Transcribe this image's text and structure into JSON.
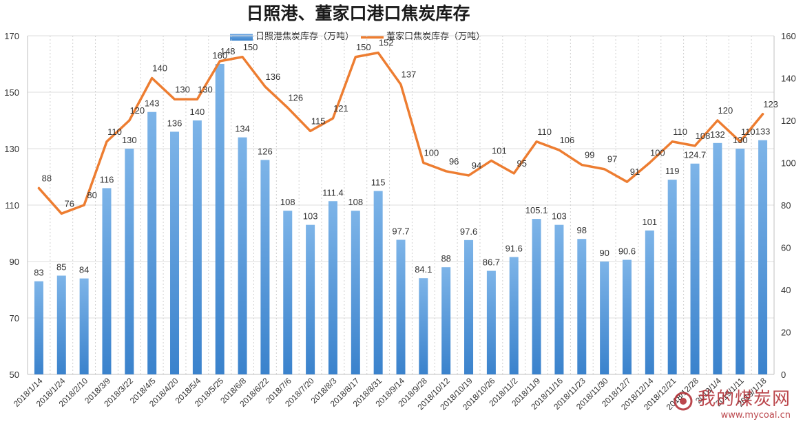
{
  "title": "日照港、董家口港口焦炭库存",
  "colors": {
    "bar": "#4a8fd6",
    "line": "#ed7d31",
    "watermark": "#b0282e"
  },
  "watermark": {
    "text": "我的煤炭网",
    "url": "www.mycoal.cn"
  },
  "chart_data": {
    "type": "bar",
    "categories": [
      "2018/1/14",
      "2018/1/24",
      "2018/2/10",
      "2018/3/9",
      "2018/3/22",
      "2018/4/5",
      "2018/4/20",
      "2018/5/4",
      "2018/5/25",
      "2018/6/8",
      "2018/6/22",
      "2018/7/6",
      "2018/7/20",
      "2018/8/3",
      "2018/8/17",
      "2018/8/31",
      "2018/9/14",
      "2018/9/28",
      "2018/10/12",
      "2018/10/19",
      "2018/10/26",
      "2018/11/2",
      "2018/11/9",
      "2018/11/16",
      "2018/11/23",
      "2018/11/30",
      "2018/12/7",
      "2018/12/14",
      "2018/12/21",
      "2018/12/28",
      "2019/1/4",
      "2019/1/11",
      "2019/1/18"
    ],
    "series": [
      {
        "name": "日照港焦炭库存（万吨）",
        "type": "bar",
        "axis": "left",
        "values": [
          83,
          85,
          84,
          116,
          130,
          143,
          136,
          140,
          160,
          134,
          126,
          108,
          103,
          111.4,
          108,
          115,
          97.7,
          84.1,
          88,
          97.6,
          86.7,
          91.6,
          105.1,
          103,
          98,
          90,
          90.6,
          101,
          119,
          124.7,
          132,
          130,
          133
        ],
        "labels": [
          "83",
          "85",
          "84",
          "116",
          "130",
          "143",
          "136",
          "140",
          "160",
          "134",
          "126",
          "108",
          "103",
          "111.4",
          "108",
          "115",
          "97.7",
          "84.1",
          "88",
          "97.6",
          "86.7",
          "91.6",
          "105.1",
          "103",
          "98",
          "90",
          "90.6",
          "101",
          "119",
          "124.7",
          "132",
          "130",
          "133"
        ]
      },
      {
        "name": "董家口焦炭库存（万吨）",
        "type": "line",
        "axis": "right",
        "values": [
          88,
          76,
          80,
          110,
          120,
          140,
          130,
          130,
          148,
          150,
          136,
          126,
          115,
          121,
          150,
          152,
          137,
          100,
          96,
          94,
          101,
          95,
          110,
          106,
          99,
          97,
          91,
          100,
          110,
          108,
          120,
          110,
          123
        ],
        "labels": [
          "88",
          "76",
          "80",
          "110",
          "120",
          "140",
          "130",
          "130",
          "148",
          "150",
          "136",
          "126",
          "115",
          "121",
          "150",
          "152",
          "137",
          "100",
          "96",
          "94",
          "101",
          "95",
          "110",
          "106",
          "99",
          "97",
          "91",
          "100",
          "110",
          "108",
          "120",
          "110",
          "123"
        ]
      }
    ],
    "y_left": {
      "min": 50,
      "max": 170,
      "ticks": [
        50,
        70,
        90,
        110,
        130,
        150,
        170
      ]
    },
    "y_right": {
      "min": 0,
      "max": 160,
      "ticks": [
        0,
        20,
        40,
        60,
        80,
        100,
        120,
        140,
        160
      ]
    },
    "grid": true,
    "legend": "top-center"
  }
}
